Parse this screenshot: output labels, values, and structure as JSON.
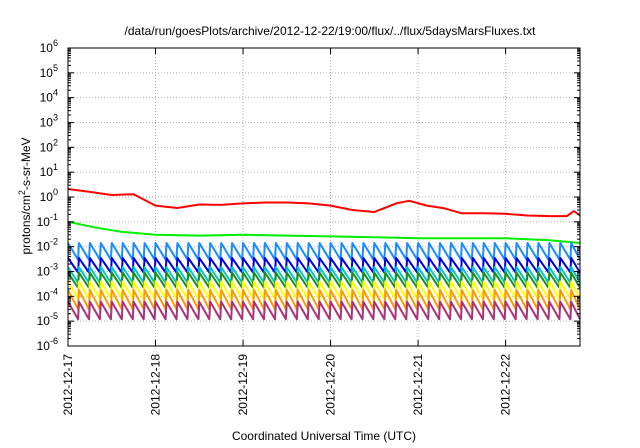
{
  "chart_data": {
    "type": "line",
    "title": "/data/run/goesPlots/archive/2012-12-22/19:00/flux/../flux/5daysMarsFluxes.txt",
    "xlabel": "Coordinated Universal Time (UTC)",
    "ylabel": "protons/cm²-s-sr-MeV",
    "ylabel_parts": {
      "base": "protons/cm",
      "sup": "2",
      "rest": "-s-sr-MeV"
    },
    "y_scale": "log",
    "ylim_exponents": [
      -6,
      6
    ],
    "y_tick_base": "10",
    "y_tick_exponents": [
      "6",
      "5",
      "4",
      "3",
      "2",
      "1",
      "0",
      "-1",
      "-2",
      "-3",
      "-4",
      "-5",
      "-6"
    ],
    "x_tick_labels": [
      "2012-12-17",
      "2012-12-18",
      "2012-12-19",
      "2012-12-20",
      "2012-12-21",
      "2012-12-22"
    ],
    "x_range_days": [
      0,
      5.85
    ],
    "grid": true,
    "legend": "none",
    "series": [
      {
        "color": "#ff0000",
        "points": [
          [
            0.0,
            2.1
          ],
          [
            0.25,
            1.6
          ],
          [
            0.5,
            1.2
          ],
          [
            0.75,
            1.3
          ],
          [
            1.0,
            0.45
          ],
          [
            1.25,
            0.36
          ],
          [
            1.5,
            0.5
          ],
          [
            1.75,
            0.48
          ],
          [
            2.0,
            0.55
          ],
          [
            2.25,
            0.6
          ],
          [
            2.5,
            0.6
          ],
          [
            2.75,
            0.55
          ],
          [
            3.0,
            0.45
          ],
          [
            3.25,
            0.3
          ],
          [
            3.5,
            0.25
          ],
          [
            3.75,
            0.55
          ],
          [
            3.9,
            0.7
          ],
          [
            4.1,
            0.45
          ],
          [
            4.3,
            0.35
          ],
          [
            4.5,
            0.22
          ],
          [
            4.75,
            0.22
          ],
          [
            5.0,
            0.21
          ],
          [
            5.25,
            0.18
          ],
          [
            5.5,
            0.17
          ],
          [
            5.7,
            0.17
          ],
          [
            5.78,
            0.27
          ],
          [
            5.85,
            0.18
          ]
        ]
      },
      {
        "color": "#00ee00",
        "points": [
          [
            0.0,
            0.1
          ],
          [
            0.3,
            0.06
          ],
          [
            0.6,
            0.04
          ],
          [
            1.0,
            0.03
          ],
          [
            1.5,
            0.028
          ],
          [
            2.0,
            0.03
          ],
          [
            2.5,
            0.028
          ],
          [
            3.0,
            0.026
          ],
          [
            3.5,
            0.024
          ],
          [
            4.0,
            0.022
          ],
          [
            4.5,
            0.022
          ],
          [
            5.0,
            0.022
          ],
          [
            5.5,
            0.018
          ],
          [
            5.85,
            0.014
          ]
        ]
      },
      {
        "color": "#1a8cff",
        "peak": 0.014,
        "trough": 0.003
      },
      {
        "color": "#0000dd",
        "peak": 0.0035,
        "trough": 0.0009
      },
      {
        "color": "#00c8c8",
        "peak": 0.0015,
        "trough": 0.00035
      },
      {
        "color": "#228b22",
        "peak": 0.0009,
        "trough": 0.00022
      },
      {
        "color": "#ffff00",
        "peak": 0.0004,
        "trough": 8e-05
      },
      {
        "color": "#ff9900",
        "peak": 0.00018,
        "trough": 3e-05
      },
      {
        "color": "#aa3377",
        "peak": 6e-05,
        "trough": 1.2e-05
      }
    ],
    "sawtooth_period_days": 0.125
  }
}
